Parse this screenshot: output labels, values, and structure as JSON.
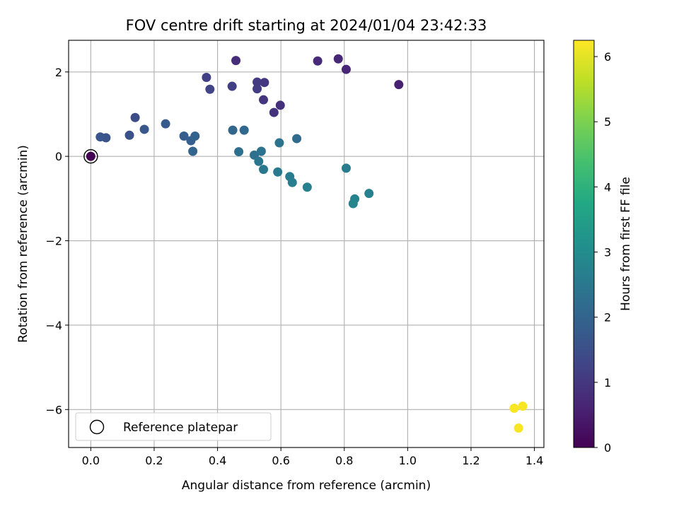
{
  "chart_data": {
    "type": "scatter",
    "title": "FOV centre drift starting at 2024/01/04 23:42:33",
    "xlabel": "Angular distance from reference (arcmin)",
    "ylabel": "Rotation from reference (arcmin)",
    "xlim": [
      -0.07,
      1.43
    ],
    "ylim": [
      -6.9,
      2.75
    ],
    "xticks": [
      0.0,
      0.2,
      0.4,
      0.6,
      0.8,
      1.0,
      1.2,
      1.4
    ],
    "xtick_labels": [
      "0.0",
      "0.2",
      "0.4",
      "0.6",
      "0.8",
      "1.0",
      "1.2",
      "1.4"
    ],
    "yticks": [
      2,
      0,
      -2,
      -4,
      -6
    ],
    "ytick_labels": [
      "2",
      "0",
      "−2",
      "−4",
      "−6"
    ],
    "grid": true,
    "legend": {
      "position": "lower-left",
      "entries": [
        "Reference platepar"
      ]
    },
    "colorbar": {
      "label": "Hours from first FF file",
      "colormap": "viridis",
      "range": [
        0,
        6.25
      ],
      "ticks": [
        0,
        1,
        2,
        3,
        4,
        5,
        6
      ],
      "tick_labels": [
        "0",
        "1",
        "2",
        "3",
        "4",
        "5",
        "6"
      ]
    },
    "reference_point": {
      "x": 0.0,
      "y": 0.0
    },
    "points": [
      {
        "x": 0.0,
        "y": 0.0,
        "t": 0.0
      },
      {
        "x": 0.972,
        "y": 1.7,
        "t": 0.55
      },
      {
        "x": 0.806,
        "y": 2.06,
        "t": 0.65
      },
      {
        "x": 0.781,
        "y": 2.31,
        "t": 0.7
      },
      {
        "x": 0.716,
        "y": 2.26,
        "t": 0.75
      },
      {
        "x": 0.458,
        "y": 2.27,
        "t": 0.8
      },
      {
        "x": 0.598,
        "y": 1.21,
        "t": 0.85
      },
      {
        "x": 0.578,
        "y": 1.04,
        "t": 0.9
      },
      {
        "x": 0.545,
        "y": 1.34,
        "t": 0.95
      },
      {
        "x": 0.548,
        "y": 1.75,
        "t": 1.0
      },
      {
        "x": 0.525,
        "y": 1.76,
        "t": 1.05
      },
      {
        "x": 0.525,
        "y": 1.6,
        "t": 1.1
      },
      {
        "x": 0.446,
        "y": 1.66,
        "t": 1.15
      },
      {
        "x": 0.365,
        "y": 1.87,
        "t": 1.2
      },
      {
        "x": 0.376,
        "y": 1.59,
        "t": 1.25
      },
      {
        "x": 0.14,
        "y": 0.92,
        "t": 1.45
      },
      {
        "x": 0.122,
        "y": 0.5,
        "t": 1.55
      },
      {
        "x": 0.048,
        "y": 0.44,
        "t": 1.6
      },
      {
        "x": 0.03,
        "y": 0.46,
        "t": 1.65
      },
      {
        "x": 0.169,
        "y": 0.64,
        "t": 1.7
      },
      {
        "x": 0.236,
        "y": 0.77,
        "t": 1.75
      },
      {
        "x": 0.294,
        "y": 0.48,
        "t": 1.85
      },
      {
        "x": 0.316,
        "y": 0.37,
        "t": 1.9
      },
      {
        "x": 0.329,
        "y": 0.48,
        "t": 1.95
      },
      {
        "x": 0.322,
        "y": 0.12,
        "t": 2.0
      },
      {
        "x": 0.448,
        "y": 0.62,
        "t": 2.05
      },
      {
        "x": 0.484,
        "y": 0.62,
        "t": 2.1
      },
      {
        "x": 0.65,
        "y": 0.42,
        "t": 2.15
      },
      {
        "x": 0.467,
        "y": 0.11,
        "t": 2.25
      },
      {
        "x": 0.516,
        "y": 0.03,
        "t": 2.3
      },
      {
        "x": 0.538,
        "y": 0.12,
        "t": 2.35
      },
      {
        "x": 0.595,
        "y": 0.32,
        "t": 2.4
      },
      {
        "x": 0.53,
        "y": -0.12,
        "t": 2.45
      },
      {
        "x": 0.545,
        "y": -0.31,
        "t": 2.5
      },
      {
        "x": 0.59,
        "y": -0.37,
        "t": 2.55
      },
      {
        "x": 0.628,
        "y": -0.48,
        "t": 2.6
      },
      {
        "x": 0.636,
        "y": -0.62,
        "t": 2.65
      },
      {
        "x": 0.683,
        "y": -0.73,
        "t": 2.7
      },
      {
        "x": 0.806,
        "y": -0.28,
        "t": 2.6
      },
      {
        "x": 0.878,
        "y": -0.88,
        "t": 2.7
      },
      {
        "x": 0.833,
        "y": -1.01,
        "t": 2.75
      },
      {
        "x": 0.828,
        "y": -1.12,
        "t": 2.8
      },
      {
        "x": 1.336,
        "y": -5.97,
        "t": 6.2
      },
      {
        "x": 1.363,
        "y": -5.92,
        "t": 6.2
      },
      {
        "x": 1.35,
        "y": -6.44,
        "t": 6.2
      }
    ]
  }
}
